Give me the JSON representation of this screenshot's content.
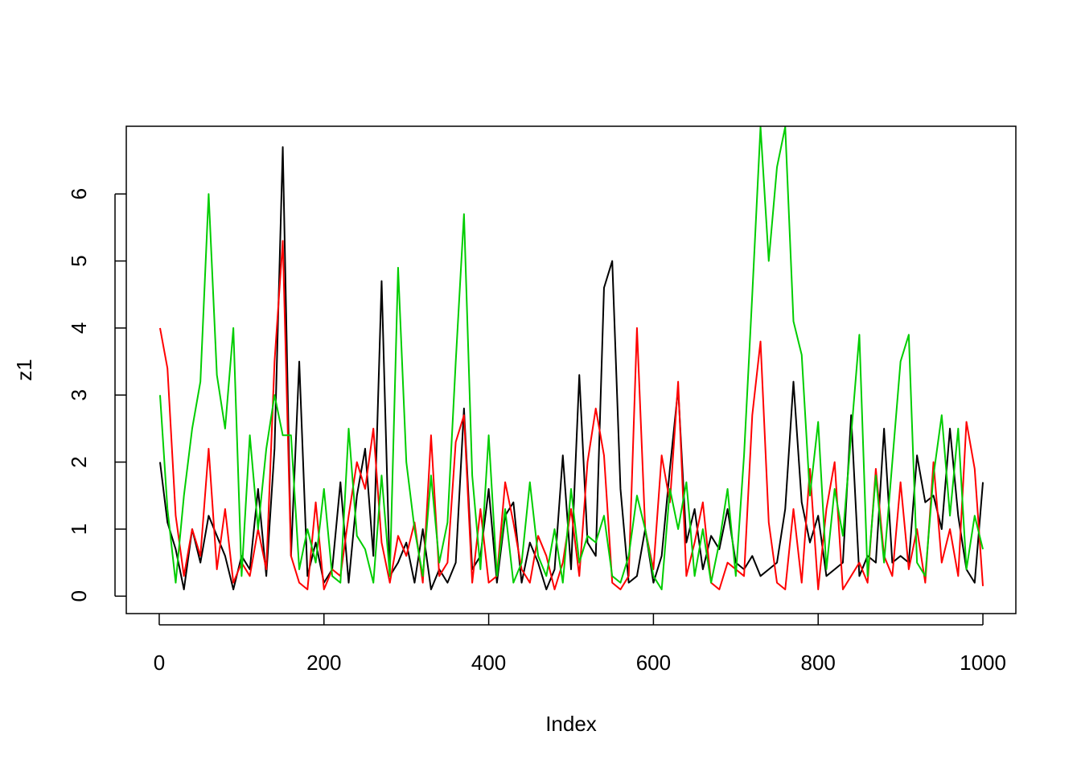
{
  "chart_data": {
    "type": "line",
    "x_label": "Index",
    "y_label": "z1",
    "x": [
      1,
      10,
      20,
      30,
      40,
      50,
      60,
      70,
      80,
      90,
      100,
      110,
      120,
      130,
      140,
      150,
      160,
      170,
      180,
      190,
      200,
      210,
      220,
      230,
      240,
      250,
      260,
      270,
      280,
      290,
      300,
      310,
      320,
      330,
      340,
      350,
      360,
      370,
      380,
      390,
      400,
      410,
      420,
      430,
      440,
      450,
      460,
      470,
      480,
      490,
      500,
      510,
      520,
      530,
      540,
      550,
      560,
      570,
      580,
      590,
      600,
      610,
      620,
      630,
      640,
      650,
      660,
      670,
      680,
      690,
      700,
      710,
      720,
      730,
      740,
      750,
      760,
      770,
      780,
      790,
      800,
      810,
      820,
      830,
      840,
      850,
      860,
      870,
      880,
      890,
      900,
      910,
      920,
      930,
      940,
      950,
      960,
      970,
      980,
      990,
      1000
    ],
    "series": [
      {
        "color": "#000000",
        "values": [
          2.0,
          1.1,
          0.7,
          0.1,
          1.0,
          0.5,
          1.2,
          0.9,
          0.6,
          0.1,
          0.6,
          0.4,
          1.6,
          0.3,
          2.2,
          6.7,
          0.6,
          3.5,
          0.3,
          0.8,
          0.2,
          0.4,
          1.7,
          0.2,
          1.5,
          2.2,
          0.6,
          4.7,
          0.3,
          0.5,
          0.8,
          0.2,
          1.0,
          0.1,
          0.4,
          0.2,
          0.5,
          2.8,
          0.4,
          0.6,
          1.6,
          0.2,
          1.2,
          1.4,
          0.2,
          0.8,
          0.5,
          0.1,
          0.4,
          2.1,
          0.4,
          3.3,
          0.8,
          0.6,
          4.6,
          5.0,
          1.6,
          0.2,
          0.3,
          1.0,
          0.2,
          0.6,
          1.9,
          3.1,
          0.8,
          1.3,
          0.4,
          0.9,
          0.7,
          1.3,
          0.5,
          0.4,
          0.6,
          0.3,
          0.4,
          0.5,
          1.3,
          3.2,
          1.4,
          0.8,
          1.2,
          0.3,
          0.4,
          0.5,
          2.7,
          0.3,
          0.6,
          0.5,
          2.5,
          0.5,
          0.6,
          0.5,
          2.1,
          1.4,
          1.5,
          1.0,
          2.5,
          1.2,
          0.4,
          0.2,
          1.7
        ]
      },
      {
        "color": "#ff0000",
        "values": [
          4.0,
          3.4,
          1.2,
          0.3,
          1.0,
          0.6,
          2.2,
          0.4,
          1.3,
          0.2,
          0.5,
          0.3,
          1.0,
          0.4,
          3.5,
          5.3,
          0.6,
          0.2,
          0.1,
          1.4,
          0.1,
          0.4,
          0.3,
          1.2,
          2.0,
          1.6,
          2.5,
          0.8,
          0.2,
          0.9,
          0.6,
          1.1,
          0.2,
          2.4,
          0.3,
          0.5,
          2.3,
          2.7,
          0.2,
          1.3,
          0.2,
          0.3,
          1.7,
          1.1,
          0.4,
          0.2,
          0.9,
          0.6,
          0.1,
          0.5,
          1.3,
          0.3,
          2.0,
          2.8,
          2.1,
          0.2,
          0.1,
          0.3,
          4.0,
          1.0,
          0.4,
          2.1,
          1.4,
          3.2,
          0.3,
          0.8,
          1.4,
          0.2,
          0.1,
          0.5,
          0.4,
          0.3,
          2.7,
          3.8,
          1.1,
          0.2,
          0.1,
          1.3,
          0.2,
          1.9,
          0.1,
          1.3,
          2.0,
          0.1,
          0.3,
          0.5,
          0.2,
          1.9,
          0.6,
          0.3,
          1.7,
          0.4,
          1.0,
          0.2,
          2.0,
          0.5,
          1.0,
          0.3,
          2.6,
          1.9,
          0.15
        ]
      },
      {
        "color": "#00cd00",
        "values": [
          3.0,
          1.3,
          0.2,
          1.5,
          2.5,
          3.2,
          6.0,
          3.3,
          2.5,
          4.0,
          0.3,
          2.4,
          1.0,
          2.2,
          3.0,
          2.4,
          2.4,
          0.4,
          1.0,
          0.5,
          1.6,
          0.3,
          0.2,
          2.5,
          0.9,
          0.7,
          0.2,
          1.8,
          0.3,
          4.9,
          2.0,
          1.0,
          0.3,
          1.8,
          0.5,
          1.1,
          3.5,
          5.7,
          1.8,
          0.4,
          2.4,
          0.3,
          1.3,
          0.2,
          0.5,
          1.7,
          0.6,
          0.3,
          1.0,
          0.2,
          1.6,
          0.5,
          0.9,
          0.8,
          1.2,
          0.3,
          0.2,
          0.6,
          1.5,
          1.0,
          0.3,
          0.1,
          1.6,
          1.0,
          1.7,
          0.3,
          1.0,
          0.2,
          0.8,
          1.6,
          0.3,
          2.1,
          4.5,
          7.0,
          5.0,
          6.4,
          7.0,
          4.1,
          3.6,
          1.5,
          2.6,
          0.4,
          1.6,
          0.9,
          2.4,
          3.9,
          0.3,
          1.8,
          0.5,
          2.0,
          3.5,
          3.9,
          0.5,
          0.3,
          1.8,
          2.7,
          1.2,
          2.5,
          0.4,
          1.2,
          0.7
        ]
      }
    ],
    "xlim": [
      -40,
      1040
    ],
    "ylim": [
      -0.26,
      7.01
    ],
    "xticks": [
      0,
      200,
      400,
      600,
      800,
      1000
    ],
    "yticks": [
      0,
      1,
      2,
      3,
      4,
      5,
      6
    ]
  }
}
